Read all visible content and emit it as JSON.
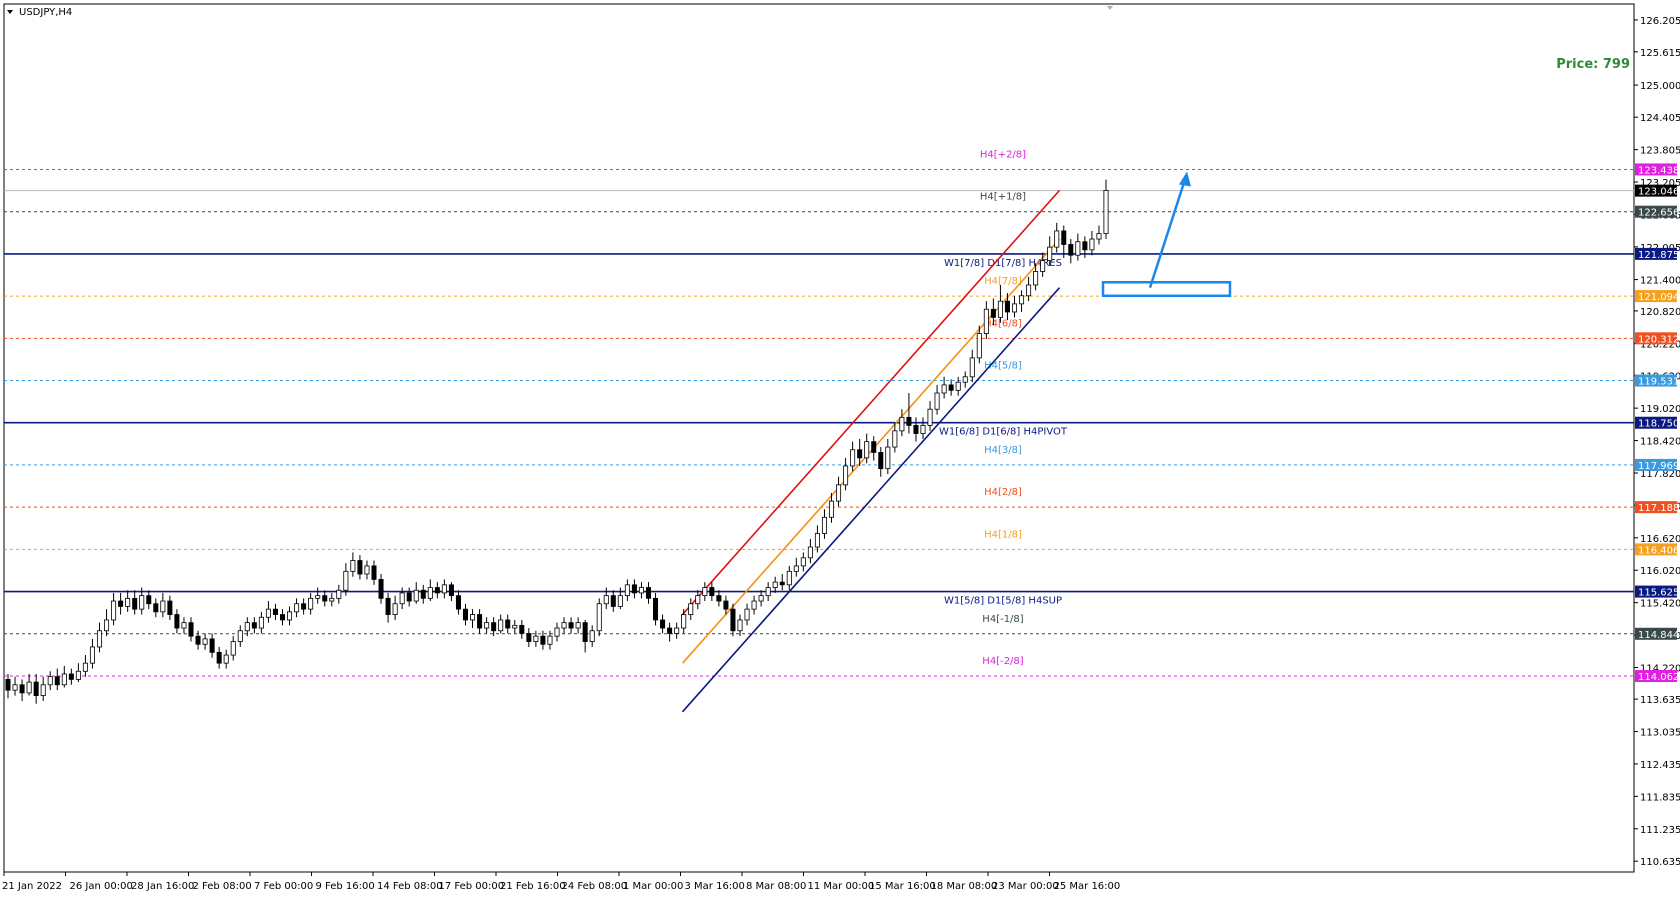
{
  "symbol_title": "USDJPY,H4",
  "price_label": "Price: 799",
  "chart_data": {
    "type": "candlestick",
    "symbol": "USDJPY",
    "timeframe": "H4",
    "ylim": [
      110.435,
      126.5
    ],
    "y_ticks": [
      "126.205",
      "125.615",
      "125.000",
      "124.405",
      "123.805",
      "123.205",
      "122.605",
      "122.005",
      "121.400",
      "120.820",
      "120.220",
      "119.620",
      "119.020",
      "118.420",
      "117.820",
      "117.220",
      "116.620",
      "116.020",
      "115.420",
      "114.820",
      "114.220",
      "113.635",
      "113.035",
      "112.435",
      "111.835",
      "111.235",
      "110.635"
    ],
    "x_ticks": [
      "21 Jan 2022",
      "26 Jan 00:00",
      "28 Jan 16:00",
      "2 Feb 08:00",
      "7 Feb 00:00",
      "9 Feb 16:00",
      "14 Feb 08:00",
      "17 Feb 00:00",
      "21 Feb 16:00",
      "24 Feb 08:00",
      "1 Mar 00:00",
      "3 Mar 16:00",
      "8 Mar 08:00",
      "11 Mar 00:00",
      "15 Mar 16:00",
      "18 Mar 08:00",
      "23 Mar 00:00",
      "25 Mar 16:00"
    ],
    "current_price": {
      "value": 123.046,
      "label": "123.046"
    },
    "levels": [
      {
        "value": 123.438,
        "label": "123.438",
        "text": "H4[+2/8]",
        "color": "#e020e0",
        "style": "dash"
      },
      {
        "value": 122.656,
        "label": "122.656",
        "text": "H4[+1/8]",
        "color": "#3a4a4a",
        "style": "dash"
      },
      {
        "value": 121.875,
        "label": "121.875",
        "text": "W1[7/8] D1[7/8] H4RES",
        "color": "#0a1a80",
        "style": "solid"
      },
      {
        "value": 121.094,
        "label": "121.094",
        "text": "H4[7/8]",
        "color": "#f5a020",
        "style": "dash"
      },
      {
        "value": 120.312,
        "label": "120.312",
        "text": "H4[6/8]",
        "color": "#f05020",
        "style": "dash"
      },
      {
        "value": 119.531,
        "label": "119.531",
        "text": "H4[5/8]",
        "color": "#3a9ae0",
        "style": "dash"
      },
      {
        "value": 118.75,
        "label": "118.750",
        "text": "W1[6/8] D1[6/8] H4PIVOT",
        "color": "#0a1a80",
        "style": "solid"
      },
      {
        "value": 117.969,
        "label": "117.969",
        "text": "H4[3/8]",
        "color": "#3a9ae0",
        "style": "dash"
      },
      {
        "value": 117.188,
        "label": "117.188",
        "text": "H4[2/8]",
        "color": "#f05020",
        "style": "dash"
      },
      {
        "value": 116.406,
        "label": "116.406",
        "text": "H4[1/8]",
        "color": "#f5a020",
        "style": "dash"
      },
      {
        "value": 115.625,
        "label": "115.625",
        "text": "W1[5/8] D1[5/8] H4SUP",
        "color": "#0a1a80",
        "style": "solid"
      },
      {
        "value": 114.844,
        "label": "114.844",
        "text": "H4[-1/8]",
        "color": "#3a4a4a",
        "style": "dash"
      },
      {
        "value": 114.062,
        "label": "114.062",
        "text": "H4[-2/8]",
        "color": "#e020e0",
        "style": "dash"
      }
    ],
    "trend_channel": [
      {
        "name": "upper",
        "color": "#e01010",
        "from": {
          "x": "3 Mar 16:00",
          "y": 115.2
        },
        "to": {
          "x": "25 Mar 16:00",
          "y": 123.05
        }
      },
      {
        "name": "middle",
        "color": "#f59010",
        "from": {
          "x": "3 Mar 16:00",
          "y": 114.3
        },
        "to": {
          "x": "25 Mar 16:00",
          "y": 122.15
        }
      },
      {
        "name": "lower",
        "color": "#0a1a80",
        "from": {
          "x": "3 Mar 16:00",
          "y": 113.4
        },
        "to": {
          "x": "25 Mar 16:00",
          "y": 121.25
        }
      }
    ],
    "target_box": {
      "color": "#1a88e8",
      "y_range": [
        121.1,
        121.35
      ]
    },
    "projection_arrow": {
      "color": "#1a88e8",
      "from_y": 121.25,
      "to_y": 123.4
    },
    "candles": [
      [
        114.0,
        113.8,
        114.1,
        113.65
      ],
      [
        113.8,
        113.9,
        114.05,
        113.7
      ],
      [
        113.9,
        113.75,
        114.0,
        113.6
      ],
      [
        113.75,
        113.95,
        114.1,
        113.7
      ],
      [
        113.95,
        113.7,
        114.1,
        113.55
      ],
      [
        113.7,
        113.9,
        114.05,
        113.6
      ],
      [
        113.9,
        114.05,
        114.15,
        113.8
      ],
      [
        114.05,
        113.9,
        114.2,
        113.8
      ],
      [
        113.9,
        114.1,
        114.25,
        113.85
      ],
      [
        114.1,
        114.0,
        114.2,
        113.9
      ],
      [
        114.0,
        114.15,
        114.3,
        113.95
      ],
      [
        114.15,
        114.3,
        114.45,
        114.05
      ],
      [
        114.3,
        114.6,
        114.75,
        114.2
      ],
      [
        114.6,
        114.9,
        115.05,
        114.5
      ],
      [
        114.9,
        115.1,
        115.3,
        114.8
      ],
      [
        115.1,
        115.45,
        115.6,
        115.0
      ],
      [
        115.45,
        115.35,
        115.6,
        115.2
      ],
      [
        115.35,
        115.5,
        115.65,
        115.25
      ],
      [
        115.5,
        115.3,
        115.65,
        115.2
      ],
      [
        115.3,
        115.55,
        115.7,
        115.2
      ],
      [
        115.55,
        115.4,
        115.65,
        115.3
      ],
      [
        115.4,
        115.25,
        115.5,
        115.15
      ],
      [
        115.25,
        115.45,
        115.6,
        115.15
      ],
      [
        115.45,
        115.2,
        115.55,
        115.1
      ],
      [
        115.2,
        114.95,
        115.3,
        114.85
      ],
      [
        114.95,
        115.05,
        115.15,
        114.85
      ],
      [
        115.05,
        114.8,
        115.15,
        114.7
      ],
      [
        114.8,
        114.65,
        114.9,
        114.55
      ],
      [
        114.65,
        114.75,
        114.85,
        114.55
      ],
      [
        114.75,
        114.5,
        114.85,
        114.4
      ],
      [
        114.5,
        114.3,
        114.6,
        114.2
      ],
      [
        114.3,
        114.45,
        114.55,
        114.2
      ],
      [
        114.45,
        114.7,
        114.8,
        114.35
      ],
      [
        114.7,
        114.9,
        115.0,
        114.6
      ],
      [
        114.9,
        115.05,
        115.15,
        114.8
      ],
      [
        115.05,
        114.95,
        115.15,
        114.85
      ],
      [
        114.95,
        115.15,
        115.25,
        114.85
      ],
      [
        115.15,
        115.3,
        115.45,
        115.05
      ],
      [
        115.3,
        115.2,
        115.4,
        115.1
      ],
      [
        115.2,
        115.1,
        115.3,
        115.0
      ],
      [
        115.1,
        115.25,
        115.35,
        115.0
      ],
      [
        115.25,
        115.4,
        115.5,
        115.15
      ],
      [
        115.4,
        115.3,
        115.5,
        115.2
      ],
      [
        115.3,
        115.5,
        115.6,
        115.2
      ],
      [
        115.5,
        115.55,
        115.7,
        115.4
      ],
      [
        115.55,
        115.45,
        115.65,
        115.35
      ],
      [
        115.45,
        115.5,
        115.6,
        115.35
      ],
      [
        115.5,
        115.65,
        115.75,
        115.4
      ],
      [
        115.65,
        116.0,
        116.15,
        115.55
      ],
      [
        116.0,
        116.2,
        116.35,
        115.9
      ],
      [
        116.2,
        115.95,
        116.3,
        115.85
      ],
      [
        115.95,
        116.1,
        116.2,
        115.85
      ],
      [
        116.1,
        115.85,
        116.2,
        115.75
      ],
      [
        115.85,
        115.5,
        115.95,
        115.4
      ],
      [
        115.5,
        115.2,
        115.6,
        115.05
      ],
      [
        115.2,
        115.4,
        115.55,
        115.1
      ],
      [
        115.4,
        115.6,
        115.7,
        115.3
      ],
      [
        115.6,
        115.45,
        115.7,
        115.35
      ],
      [
        115.45,
        115.65,
        115.8,
        115.4
      ],
      [
        115.65,
        115.5,
        115.75,
        115.4
      ],
      [
        115.5,
        115.7,
        115.85,
        115.45
      ],
      [
        115.7,
        115.6,
        115.8,
        115.5
      ],
      [
        115.6,
        115.75,
        115.85,
        115.5
      ],
      [
        115.75,
        115.55,
        115.8,
        115.45
      ],
      [
        115.55,
        115.3,
        115.65,
        115.2
      ],
      [
        115.3,
        115.1,
        115.4,
        115.0
      ],
      [
        115.1,
        115.2,
        115.3,
        114.95
      ],
      [
        115.2,
        114.95,
        115.3,
        114.85
      ],
      [
        114.95,
        115.05,
        115.15,
        114.85
      ],
      [
        115.05,
        114.9,
        115.15,
        114.8
      ],
      [
        114.9,
        115.1,
        115.2,
        114.85
      ],
      [
        115.1,
        114.95,
        115.2,
        114.85
      ],
      [
        114.95,
        115.0,
        115.1,
        114.85
      ],
      [
        115.0,
        114.85,
        115.1,
        114.75
      ],
      [
        114.85,
        114.7,
        114.95,
        114.6
      ],
      [
        114.7,
        114.8,
        114.9,
        114.6
      ],
      [
        114.8,
        114.65,
        114.9,
        114.55
      ],
      [
        114.65,
        114.8,
        114.9,
        114.55
      ],
      [
        114.8,
        114.95,
        115.05,
        114.7
      ],
      [
        114.95,
        115.05,
        115.15,
        114.85
      ],
      [
        115.05,
        114.95,
        115.15,
        114.85
      ],
      [
        114.95,
        115.05,
        115.15,
        114.85
      ],
      [
        115.05,
        114.7,
        115.1,
        114.5
      ],
      [
        114.7,
        114.9,
        115.0,
        114.6
      ],
      [
        114.9,
        115.4,
        115.5,
        114.8
      ],
      [
        115.4,
        115.55,
        115.7,
        115.3
      ],
      [
        115.55,
        115.35,
        115.65,
        115.25
      ],
      [
        115.35,
        115.55,
        115.7,
        115.3
      ],
      [
        115.55,
        115.75,
        115.85,
        115.45
      ],
      [
        115.75,
        115.6,
        115.85,
        115.5
      ],
      [
        115.6,
        115.7,
        115.8,
        115.5
      ],
      [
        115.7,
        115.5,
        115.8,
        115.4
      ],
      [
        115.5,
        115.1,
        115.6,
        115.0
      ],
      [
        115.1,
        114.95,
        115.2,
        114.85
      ],
      [
        114.95,
        114.85,
        115.05,
        114.7
      ],
      [
        114.85,
        114.95,
        115.05,
        114.75
      ],
      [
        114.95,
        115.2,
        115.3,
        114.85
      ],
      [
        115.2,
        115.4,
        115.5,
        115.1
      ],
      [
        115.4,
        115.55,
        115.65,
        115.3
      ],
      [
        115.55,
        115.7,
        115.8,
        115.45
      ],
      [
        115.7,
        115.55,
        115.8,
        115.45
      ],
      [
        115.55,
        115.45,
        115.65,
        115.35
      ],
      [
        115.45,
        115.3,
        115.55,
        115.2
      ],
      [
        115.3,
        114.9,
        115.4,
        114.8
      ],
      [
        114.9,
        115.1,
        115.2,
        114.8
      ],
      [
        115.1,
        115.3,
        115.4,
        115.0
      ],
      [
        115.3,
        115.45,
        115.55,
        115.2
      ],
      [
        115.45,
        115.55,
        115.65,
        115.35
      ],
      [
        115.55,
        115.7,
        115.8,
        115.45
      ],
      [
        115.7,
        115.8,
        115.9,
        115.6
      ],
      [
        115.8,
        115.75,
        115.95,
        115.65
      ],
      [
        115.75,
        116.0,
        116.1,
        115.65
      ],
      [
        116.0,
        116.1,
        116.25,
        115.9
      ],
      [
        116.1,
        116.25,
        116.35,
        116.0
      ],
      [
        116.25,
        116.45,
        116.6,
        116.15
      ],
      [
        116.45,
        116.7,
        116.85,
        116.35
      ],
      [
        116.7,
        117.0,
        117.15,
        116.6
      ],
      [
        117.0,
        117.3,
        117.45,
        116.9
      ],
      [
        117.3,
        117.6,
        117.75,
        117.2
      ],
      [
        117.6,
        117.95,
        118.1,
        117.5
      ],
      [
        117.95,
        118.25,
        118.4,
        117.85
      ],
      [
        118.25,
        118.1,
        118.45,
        117.95
      ],
      [
        118.1,
        118.4,
        118.55,
        118.0
      ],
      [
        118.4,
        118.2,
        118.5,
        118.05
      ],
      [
        118.2,
        117.9,
        118.3,
        117.75
      ],
      [
        117.9,
        118.3,
        118.45,
        117.8
      ],
      [
        118.3,
        118.6,
        118.75,
        118.2
      ],
      [
        118.6,
        118.85,
        119.0,
        118.5
      ],
      [
        118.85,
        118.7,
        119.3,
        118.55
      ],
      [
        118.7,
        118.55,
        118.85,
        118.4
      ],
      [
        118.55,
        118.7,
        118.85,
        118.45
      ],
      [
        118.7,
        119.0,
        119.15,
        118.6
      ],
      [
        119.0,
        119.3,
        119.45,
        118.9
      ],
      [
        119.3,
        119.45,
        119.6,
        119.2
      ],
      [
        119.45,
        119.35,
        119.55,
        119.25
      ],
      [
        119.35,
        119.5,
        119.6,
        119.25
      ],
      [
        119.5,
        119.6,
        119.7,
        119.4
      ],
      [
        119.6,
        119.95,
        120.1,
        119.5
      ],
      [
        119.95,
        120.4,
        120.55,
        119.85
      ],
      [
        120.4,
        120.85,
        121.0,
        120.3
      ],
      [
        120.85,
        120.7,
        121.05,
        120.55
      ],
      [
        120.7,
        121.0,
        121.3,
        120.6
      ],
      [
        121.0,
        120.8,
        121.15,
        120.65
      ],
      [
        120.8,
        120.95,
        121.1,
        120.7
      ],
      [
        120.95,
        121.1,
        121.2,
        120.8
      ],
      [
        121.1,
        121.3,
        121.45,
        121.0
      ],
      [
        121.3,
        121.55,
        121.7,
        121.2
      ],
      [
        121.55,
        121.75,
        121.9,
        121.45
      ],
      [
        121.75,
        122.0,
        122.2,
        121.65
      ],
      [
        122.0,
        122.3,
        122.45,
        121.9
      ],
      [
        122.3,
        122.05,
        122.4,
        121.8
      ],
      [
        122.05,
        121.85,
        122.15,
        121.7
      ],
      [
        121.85,
        122.1,
        122.25,
        121.75
      ],
      [
        122.1,
        121.95,
        122.2,
        121.8
      ],
      [
        121.95,
        122.15,
        122.3,
        121.85
      ],
      [
        122.15,
        122.25,
        122.4,
        122.05
      ],
      [
        122.25,
        123.05,
        123.25,
        122.15
      ]
    ]
  }
}
